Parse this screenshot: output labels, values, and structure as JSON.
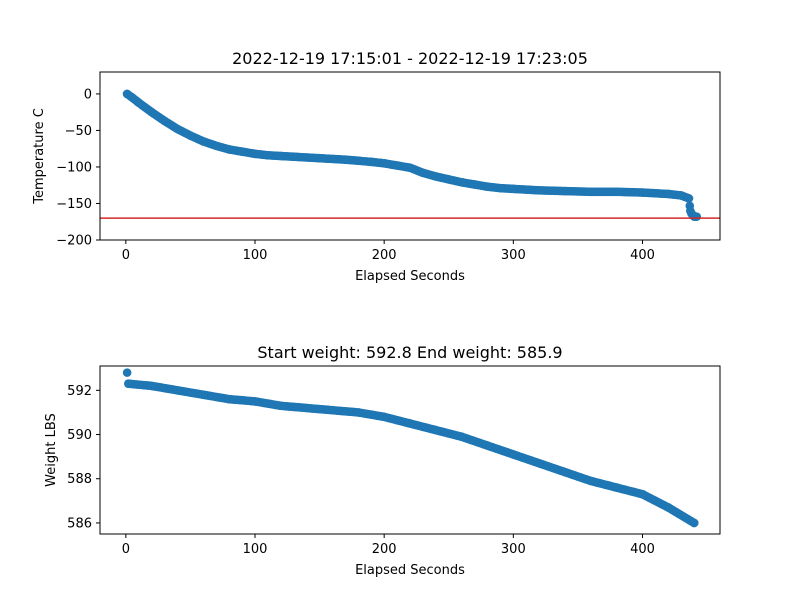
{
  "chart_data": [
    {
      "type": "scatter",
      "title": "2022-12-19 17:15:01 - 2022-12-19 17:23:05",
      "xlabel": "Elapsed Seconds",
      "ylabel": "Temperature C",
      "xlim": [
        -20,
        460
      ],
      "ylim": [
        -200,
        30
      ],
      "xticks": [
        0,
        100,
        200,
        300,
        400
      ],
      "yticks": [
        0,
        -50,
        -100,
        -150,
        -200
      ],
      "grid": false,
      "reference_line": {
        "y": -170,
        "color": "#d62728"
      },
      "marker_color": "#1f77b4",
      "curve_points": [
        [
          1,
          0
        ],
        [
          5,
          -5
        ],
        [
          10,
          -12
        ],
        [
          20,
          -25
        ],
        [
          30,
          -37
        ],
        [
          40,
          -48
        ],
        [
          50,
          -57
        ],
        [
          60,
          -65
        ],
        [
          70,
          -71
        ],
        [
          80,
          -76
        ],
        [
          90,
          -79
        ],
        [
          100,
          -82
        ],
        [
          110,
          -84
        ],
        [
          120,
          -85
        ],
        [
          130,
          -86
        ],
        [
          150,
          -88
        ],
        [
          170,
          -90
        ],
        [
          190,
          -93
        ],
        [
          200,
          -95
        ],
        [
          210,
          -98
        ],
        [
          220,
          -101
        ],
        [
          230,
          -108
        ],
        [
          240,
          -113
        ],
        [
          250,
          -117
        ],
        [
          260,
          -121
        ],
        [
          270,
          -124
        ],
        [
          280,
          -127
        ],
        [
          290,
          -129
        ],
        [
          300,
          -130
        ],
        [
          320,
          -132
        ],
        [
          340,
          -133
        ],
        [
          360,
          -134
        ],
        [
          380,
          -134
        ],
        [
          400,
          -135
        ],
        [
          420,
          -137
        ],
        [
          430,
          -139
        ],
        [
          436,
          -143
        ],
        [
          437,
          -160
        ],
        [
          438,
          -164
        ],
        [
          440,
          -168
        ],
        [
          442,
          -168
        ]
      ]
    },
    {
      "type": "scatter",
      "title": "Start weight: 592.8 End weight: 585.9",
      "xlabel": "Elapsed Seconds",
      "ylabel": "Weight LBS",
      "xlim": [
        -20,
        460
      ],
      "ylim": [
        585.5,
        593.1
      ],
      "xticks": [
        0,
        100,
        200,
        300,
        400
      ],
      "yticks": [
        586,
        588,
        590,
        592
      ],
      "grid": false,
      "marker_color": "#1f77b4",
      "outlier": [
        1,
        592.8
      ],
      "curve_points": [
        [
          2,
          592.3
        ],
        [
          20,
          592.2
        ],
        [
          40,
          592.0
        ],
        [
          60,
          591.8
        ],
        [
          80,
          591.6
        ],
        [
          100,
          591.5
        ],
        [
          120,
          591.3
        ],
        [
          140,
          591.2
        ],
        [
          160,
          591.1
        ],
        [
          180,
          591.0
        ],
        [
          200,
          590.8
        ],
        [
          220,
          590.5
        ],
        [
          240,
          590.2
        ],
        [
          260,
          589.9
        ],
        [
          280,
          589.5
        ],
        [
          300,
          589.1
        ],
        [
          320,
          588.7
        ],
        [
          340,
          588.3
        ],
        [
          360,
          587.9
        ],
        [
          380,
          587.6
        ],
        [
          400,
          587.3
        ],
        [
          420,
          586.7
        ],
        [
          440,
          586.0
        ]
      ]
    }
  ]
}
